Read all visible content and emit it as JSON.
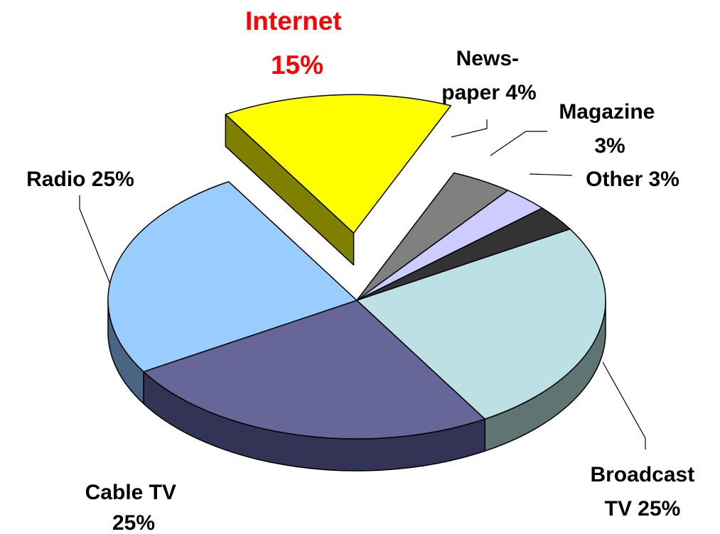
{
  "chart_data": {
    "type": "pie",
    "title": "",
    "three_d": true,
    "exploded": "Internet",
    "slices": [
      {
        "name": "News-paper",
        "value": 4,
        "color": "#808080",
        "side_color": "#4d4d4d",
        "label_lines": [
          "News-",
          "paper 4%"
        ]
      },
      {
        "name": "Magazine",
        "value": 3,
        "color": "#ccccff",
        "side_color": "#8a8ab3",
        "label_lines": [
          "Magazine",
          "3%"
        ]
      },
      {
        "name": "Other",
        "value": 3,
        "color": "#333333",
        "side_color": "#1a1a1a",
        "label_lines": [
          "Other 3%"
        ]
      },
      {
        "name": "Broadcast TV",
        "value": 25,
        "color": "#bce0e4",
        "side_color": "#5f7574",
        "label_lines": [
          "Broadcast",
          "TV  25%"
        ]
      },
      {
        "name": "Cable TV",
        "value": 25,
        "color": "#666699",
        "side_color": "#333355",
        "label_lines": [
          "Cable TV",
          "25%"
        ]
      },
      {
        "name": "Radio",
        "value": 25,
        "color": "#99ccff",
        "side_color": "#4a6583",
        "label_lines": [
          "Radio 25%"
        ]
      },
      {
        "name": "Internet",
        "value": 15,
        "color": "#ffff00",
        "side_color": "#808000",
        "label_lines": [
          "Internet",
          "15%"
        ],
        "highlight_color": "#ff0000"
      }
    ]
  }
}
